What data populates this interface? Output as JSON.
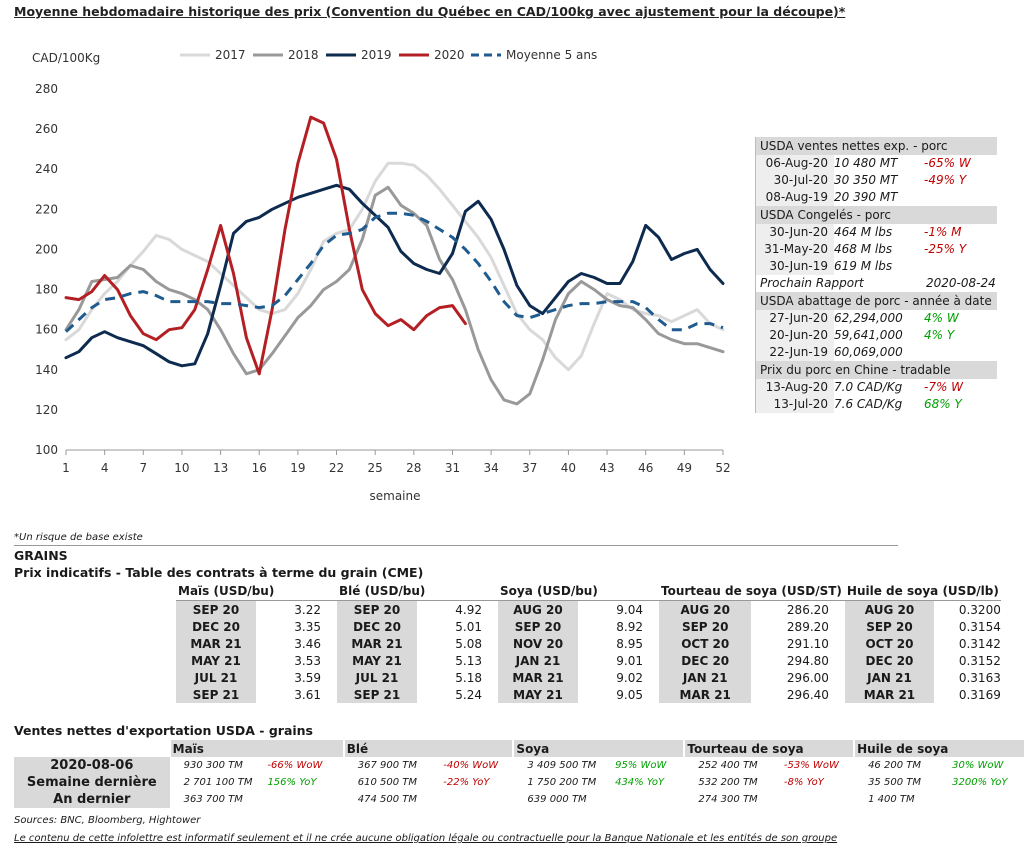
{
  "header": {
    "title": "Moyenne hebdomadaire historique des prix (Convention du Québec en CAD/100kg avec ajustement pour la découpe)*"
  },
  "chart_data": {
    "type": "line",
    "ylabel": "CAD/100Kg",
    "xlabel": "semaine",
    "xlim": [
      1,
      52
    ],
    "ylim": [
      100,
      280
    ],
    "xticks": [
      1,
      4,
      7,
      10,
      13,
      16,
      19,
      22,
      25,
      28,
      31,
      34,
      37,
      40,
      43,
      46,
      49,
      52
    ],
    "yticks": [
      100,
      120,
      140,
      160,
      180,
      200,
      220,
      240,
      260,
      280
    ],
    "legend_position": "top",
    "series": [
      {
        "name": "2017",
        "color": "#d9d9d9",
        "dash": false,
        "x": [
          1,
          2,
          3,
          4,
          5,
          6,
          7,
          8,
          9,
          10,
          11,
          12,
          13,
          14,
          15,
          16,
          17,
          18,
          19,
          20,
          21,
          22,
          23,
          24,
          25,
          26,
          27,
          28,
          29,
          30,
          31,
          32,
          33,
          34,
          35,
          36,
          37,
          38,
          39,
          40,
          41,
          42,
          43,
          44,
          45,
          46,
          47,
          48,
          49,
          50,
          51,
          52
        ],
        "y": [
          155,
          160,
          170,
          178,
          184,
          192,
          199,
          207,
          205,
          200,
          197,
          194,
          188,
          182,
          176,
          170,
          168,
          170,
          178,
          190,
          204,
          208,
          210,
          220,
          234,
          243,
          243,
          242,
          237,
          230,
          222,
          214,
          206,
          196,
          182,
          168,
          160,
          155,
          146,
          140,
          147,
          163,
          178,
          175,
          170,
          168,
          167,
          164,
          167,
          170,
          163,
          160
        ]
      },
      {
        "name": "2018",
        "color": "#999999",
        "dash": false,
        "x": [
          1,
          2,
          3,
          4,
          5,
          6,
          7,
          8,
          9,
          10,
          11,
          12,
          13,
          14,
          15,
          16,
          17,
          18,
          19,
          20,
          21,
          22,
          23,
          24,
          25,
          26,
          27,
          28,
          29,
          30,
          31,
          32,
          33,
          34,
          35,
          36,
          37,
          38,
          39,
          40,
          41,
          42,
          43,
          44,
          45,
          46,
          47,
          48,
          49,
          50,
          51,
          52
        ],
        "y": [
          160,
          170,
          184,
          185,
          186,
          192,
          190,
          184,
          180,
          178,
          175,
          170,
          160,
          148,
          138,
          140,
          148,
          157,
          166,
          172,
          180,
          184,
          190,
          205,
          227,
          231,
          222,
          218,
          212,
          195,
          185,
          170,
          150,
          135,
          125,
          123,
          128,
          145,
          165,
          178,
          184,
          180,
          175,
          172,
          171,
          165,
          158,
          155,
          153,
          153,
          151,
          149
        ]
      },
      {
        "name": "2019",
        "color": "#0d2a4f",
        "dash": false,
        "x": [
          1,
          2,
          3,
          4,
          5,
          6,
          7,
          8,
          9,
          10,
          11,
          12,
          13,
          14,
          15,
          16,
          17,
          18,
          19,
          20,
          21,
          22,
          23,
          24,
          25,
          26,
          27,
          28,
          29,
          30,
          31,
          32,
          33,
          34,
          35,
          36,
          37,
          38,
          39,
          40,
          41,
          42,
          43,
          44,
          45,
          46,
          47,
          48,
          49,
          50,
          51,
          52
        ],
        "y": [
          146,
          149,
          156,
          159,
          156,
          154,
          152,
          148,
          144,
          142,
          143,
          158,
          182,
          208,
          214,
          216,
          220,
          223,
          226,
          228,
          230,
          232,
          230,
          223,
          217,
          211,
          199,
          193,
          190,
          188,
          198,
          219,
          224,
          215,
          200,
          182,
          172,
          168,
          176,
          184,
          188,
          186,
          183,
          183,
          194,
          212,
          206,
          195,
          198,
          200,
          190,
          183
        ]
      },
      {
        "name": "2020",
        "color": "#b41f24",
        "dash": false,
        "x": [
          1,
          2,
          3,
          4,
          5,
          6,
          7,
          8,
          9,
          10,
          11,
          12,
          13,
          14,
          15,
          16,
          17,
          18,
          19,
          20,
          21,
          22,
          23,
          24,
          25,
          26,
          27,
          28,
          29,
          30,
          31,
          32
        ],
        "y": [
          176,
          175,
          179,
          187,
          180,
          167,
          158,
          155,
          160,
          161,
          170,
          190,
          212,
          188,
          156,
          138,
          170,
          210,
          243,
          266,
          263,
          245,
          210,
          180,
          168,
          162,
          165,
          160,
          167,
          171,
          172,
          163
        ]
      },
      {
        "name": "Moyenne 5 ans",
        "color": "#1f5b8e",
        "dash": true,
        "x": [
          1,
          2,
          3,
          4,
          5,
          6,
          7,
          8,
          9,
          10,
          11,
          12,
          13,
          14,
          15,
          16,
          17,
          18,
          19,
          20,
          21,
          22,
          23,
          24,
          25,
          26,
          27,
          28,
          29,
          30,
          31,
          32,
          33,
          34,
          35,
          36,
          37,
          38,
          39,
          40,
          41,
          42,
          43,
          44,
          45,
          46,
          47,
          48,
          49,
          50,
          51,
          52
        ],
        "y": [
          159,
          165,
          171,
          175,
          176,
          178,
          179,
          177,
          174,
          174,
          174,
          174,
          173,
          173,
          172,
          171,
          172,
          177,
          185,
          193,
          202,
          207,
          208,
          210,
          216,
          218,
          218,
          217,
          214,
          210,
          206,
          200,
          193,
          184,
          174,
          167,
          166,
          168,
          170,
          172,
          173,
          173,
          174,
          174,
          174,
          171,
          165,
          160,
          160,
          163,
          163,
          161
        ]
      }
    ]
  },
  "side_table": {
    "sections": [
      {
        "header": "USDA ventes nettes exp. - porc",
        "rows": [
          {
            "date": "06-Aug-20",
            "value": "10 480  MT",
            "change": "-65% W",
            "color": "red"
          },
          {
            "date": "30-Jul-20",
            "value": "30 350  MT",
            "change": "-49% Y",
            "color": "red"
          },
          {
            "date": "08-Aug-19",
            "value": "20 390  MT",
            "change": "",
            "color": ""
          }
        ]
      },
      {
        "header": "USDA Congelés - porc",
        "rows": [
          {
            "date": "30-Jun-20",
            "value": "464 M lbs",
            "change": "-1% M",
            "color": "red"
          },
          {
            "date": "31-May-20",
            "value": "468 M lbs",
            "change": "-25% Y",
            "color": "red"
          },
          {
            "date": "30-Jun-19",
            "value": "619 M lbs",
            "change": "",
            "color": ""
          }
        ]
      },
      {
        "header": "USDA abattage de porc - année à date",
        "rows": [
          {
            "date": "27-Jun-20",
            "value": "62,294,000",
            "change": "4% W",
            "color": "green"
          },
          {
            "date": "20-Jun-20",
            "value": "59,641,000",
            "change": "4% Y",
            "color": "green"
          },
          {
            "date": "22-Jun-19",
            "value": "60,069,000",
            "change": "",
            "color": ""
          }
        ]
      },
      {
        "header": "Prix du porc en Chine - tradable",
        "rows": [
          {
            "date": "13-Aug-20",
            "value": "7.0 CAD/Kg",
            "change": "-7% W",
            "color": "red"
          },
          {
            "date": "13-Jul-20",
            "value": "7.6 CAD/Kg",
            "change": "68% Y",
            "color": "green"
          }
        ]
      }
    ],
    "next_report_label": "Prochain Rapport",
    "next_report_date": "2020-08-24"
  },
  "footnote": "*Un risque de base existe",
  "grains_title": "GRAINS",
  "futures_title": "Prix indicatifs - Table des contrats à terme du grain (CME)",
  "futures": {
    "headers": [
      "Maïs (USD/bu)",
      "Blé (USD/bu)",
      "Soya (USD/bu)",
      "Tourteau de soya (USD/ST)",
      "Huile de soya (USD/lb)"
    ],
    "rows": [
      [
        [
          "SEP 20",
          "3.22"
        ],
        [
          "SEP 20",
          "4.92"
        ],
        [
          "AUG 20",
          "9.04"
        ],
        [
          "AUG 20",
          "286.20"
        ],
        [
          "AUG 20",
          "0.3200"
        ]
      ],
      [
        [
          "DEC 20",
          "3.35"
        ],
        [
          "DEC 20",
          "5.01"
        ],
        [
          "SEP 20",
          "8.92"
        ],
        [
          "SEP 20",
          "289.20"
        ],
        [
          "SEP 20",
          "0.3154"
        ]
      ],
      [
        [
          "MAR 21",
          "3.46"
        ],
        [
          "MAR 21",
          "5.08"
        ],
        [
          "NOV 20",
          "8.95"
        ],
        [
          "OCT 20",
          "291.10"
        ],
        [
          "OCT 20",
          "0.3142"
        ]
      ],
      [
        [
          "MAY 21",
          "3.53"
        ],
        [
          "MAY 21",
          "5.13"
        ],
        [
          "JAN 21",
          "9.01"
        ],
        [
          "DEC 20",
          "294.80"
        ],
        [
          "DEC 20",
          "0.3152"
        ]
      ],
      [
        [
          "JUL 21",
          "3.59"
        ],
        [
          "JUL 21",
          "5.18"
        ],
        [
          "MAR 21",
          "9.02"
        ],
        [
          "JAN 21",
          "296.00"
        ],
        [
          "JAN 21",
          "0.3163"
        ]
      ],
      [
        [
          "SEP 21",
          "3.61"
        ],
        [
          "SEP 21",
          "5.24"
        ],
        [
          "MAY 21",
          "9.05"
        ],
        [
          "MAR 21",
          "296.40"
        ],
        [
          "MAR 21",
          "0.3169"
        ]
      ]
    ]
  },
  "exports_title": "Ventes nettes d'exportation USDA - grains",
  "exports": {
    "headers": [
      "Maïs",
      "Blé",
      "Soya",
      "Tourteau de soya",
      "Huile de soya"
    ],
    "row_labels": [
      "2020-08-06",
      "Semaine dernière",
      "An dernier"
    ],
    "rows": [
      [
        [
          "930 300 TM",
          "-66% WoW",
          "red"
        ],
        [
          "367 900 TM",
          "-40% WoW",
          "red"
        ],
        [
          "3 409 500 TM",
          "95% WoW",
          "green"
        ],
        [
          "252 400 TM",
          "-53% WoW",
          "red"
        ],
        [
          "46 200 TM",
          "30% WoW",
          "green"
        ]
      ],
      [
        [
          "2 701 100 TM",
          "156% YoY",
          "green"
        ],
        [
          "610 500 TM",
          "-22% YoY",
          "red"
        ],
        [
          "1 750 200 TM",
          "434% YoY",
          "green"
        ],
        [
          "532 200 TM",
          "-8% YoY",
          "red"
        ],
        [
          "35 500 TM",
          "3200% YoY",
          "green"
        ]
      ],
      [
        [
          "363 700 TM",
          "",
          ""
        ],
        [
          "474 500 TM",
          "",
          ""
        ],
        [
          "639 000 TM",
          "",
          ""
        ],
        [
          "274 300 TM",
          "",
          ""
        ],
        [
          "1 400 TM",
          "",
          ""
        ]
      ]
    ]
  },
  "sources": "Sources: BNC, Bloomberg, Hightower",
  "disclaimer": "Le contenu de cette infolettre est informatif seulement et il ne crée aucune obligation légale ou contractuelle pour la Banque Nationale et les entités de son groupe"
}
